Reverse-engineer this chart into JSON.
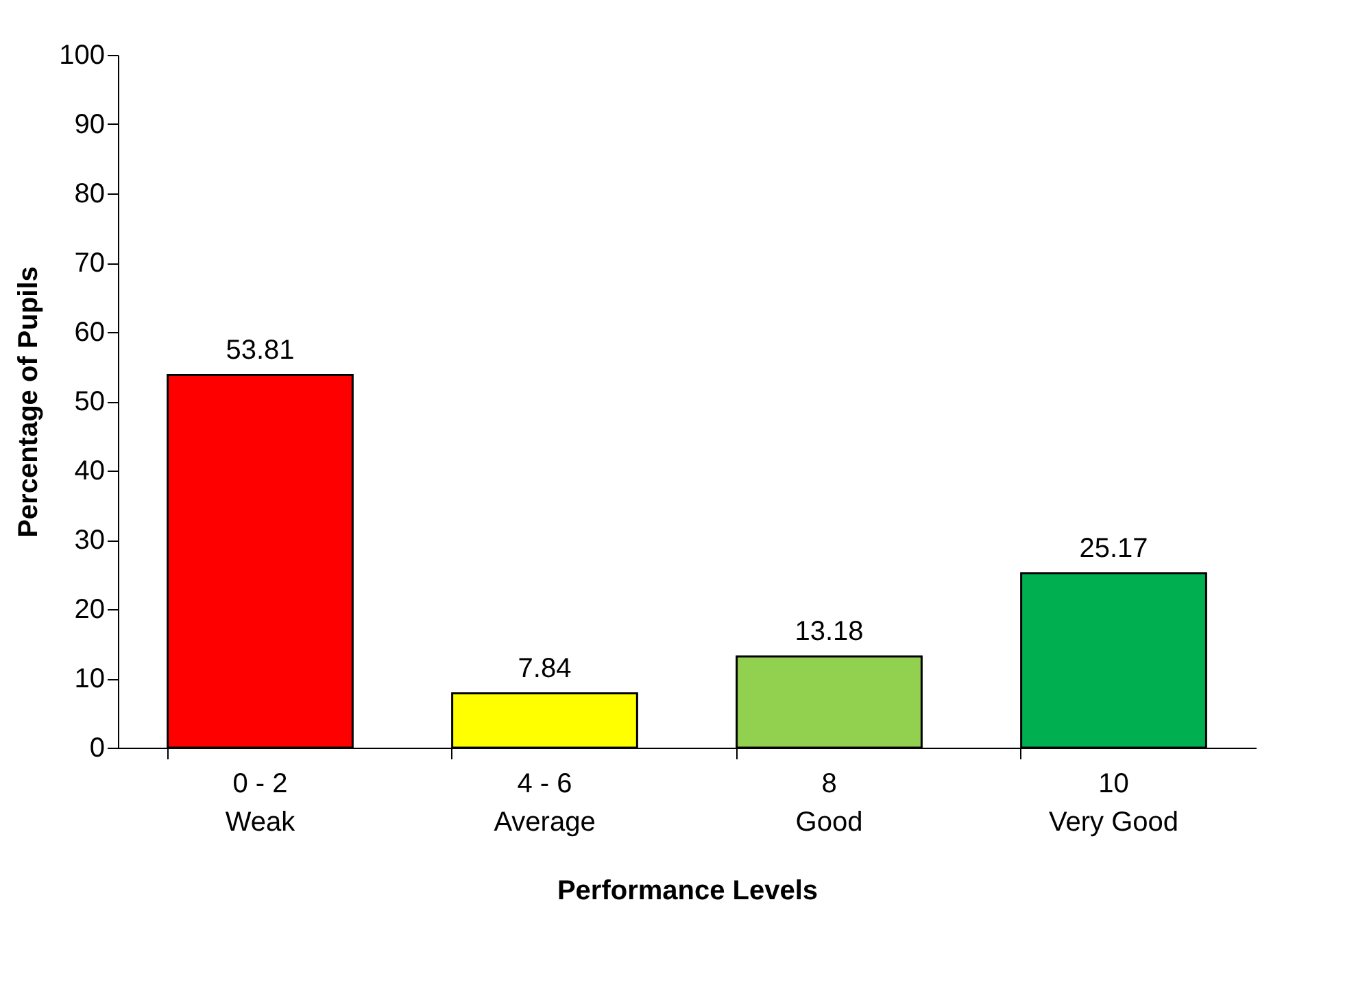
{
  "chart_data": {
    "type": "bar",
    "xlabel": "Performance Levels",
    "ylabel": "Percentage of Pupils",
    "categories": [
      "0 - 2\nWeak",
      "4 - 6\nAverage",
      "8\nGood",
      "10\nVery Good"
    ],
    "values": [
      53.81,
      7.84,
      13.18,
      25.17
    ],
    "colors": [
      "#ff0000",
      "#ffff00",
      "#92d050",
      "#00b050"
    ],
    "ylim": [
      0,
      100
    ],
    "yticks": [
      0,
      10,
      20,
      30,
      40,
      50,
      60,
      70,
      80,
      90,
      100
    ],
    "data_labels": true
  }
}
